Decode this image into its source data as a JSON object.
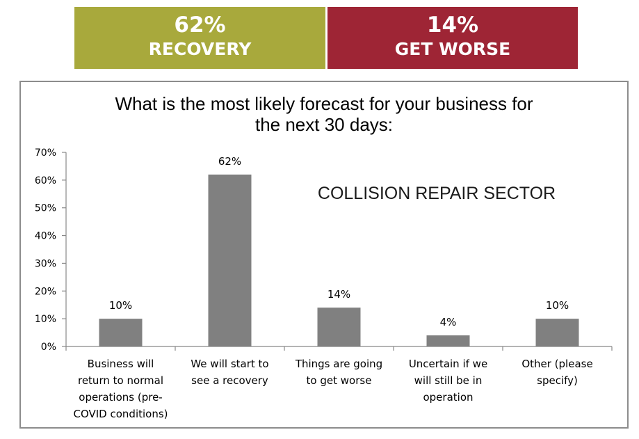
{
  "banners": [
    {
      "value": "62%",
      "label": "RECOVERY",
      "color": "#a8a93c"
    },
    {
      "value": "14%",
      "label": "GET WORSE",
      "color": "#9e2535"
    }
  ],
  "chart_data": {
    "type": "bar",
    "title": [
      "What is the most likely forecast for your business for",
      "the next 30 days:"
    ],
    "annotation": "COLLISION REPAIR SECTOR",
    "categories": [
      [
        "Business will",
        "return to normal",
        "operations (pre-",
        "COVID conditions)"
      ],
      [
        "We will start to",
        "see a recovery"
      ],
      [
        "Things are going",
        "to get worse"
      ],
      [
        "Uncertain if we",
        "will still be in",
        "operation"
      ],
      [
        "Other (please",
        "specify)"
      ]
    ],
    "values": [
      10,
      62,
      14,
      4,
      10
    ],
    "data_labels": [
      "10%",
      "62%",
      "14%",
      "4%",
      "10%"
    ],
    "ylim": [
      0,
      70
    ],
    "yticks": [
      0,
      10,
      20,
      30,
      40,
      50,
      60,
      70
    ],
    "ytick_labels": [
      "0%",
      "10%",
      "20%",
      "30%",
      "40%",
      "50%",
      "60%",
      "70%"
    ],
    "bar_color": "#808080",
    "grid": false,
    "legend": false
  }
}
